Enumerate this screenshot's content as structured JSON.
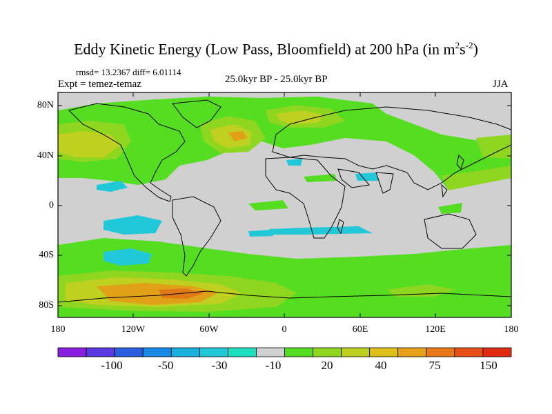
{
  "title": {
    "main": "Eddy Kinetic Energy (Low Pass, Bloomfield) at 200 hPa (in m",
    "sup1": "2",
    "mid": "s",
    "sup2": "-2",
    "end": ")"
  },
  "stats": "rmsd= 13.2367 diff= 6.01114",
  "experiment": "Expt = temez-temaz",
  "period": "25.0kyr BP - 25.0kyr BP",
  "season": "JJA",
  "lat_labels": [
    "80N",
    "40N",
    "0",
    "40S",
    "80S"
  ],
  "lon_labels": [
    "180",
    "120W",
    "60W",
    "0",
    "60E",
    "120E",
    "180"
  ],
  "colorbar": {
    "labels": [
      "-100",
      "-50",
      "-30",
      "-10",
      "20",
      "40",
      "75",
      "150"
    ],
    "colors": [
      "#8a1ee0",
      "#5a3ae0",
      "#2a5de0",
      "#1a8ae8",
      "#1ab0e0",
      "#20c8d8",
      "#1ee0c0",
      "#d0d0d0",
      "#55dd22",
      "#8ed620",
      "#c0d020",
      "#e0c018",
      "#e8a018",
      "#e87818",
      "#e85018",
      "#e02a10"
    ]
  },
  "map_colors": {
    "background": "#d0d0d0",
    "green": "#55dd22",
    "lightgreen": "#8ed620",
    "yellow": "#c0d020",
    "orange": "#e0a018",
    "darkorange": "#e07818",
    "cyan": "#20c8d8"
  }
}
